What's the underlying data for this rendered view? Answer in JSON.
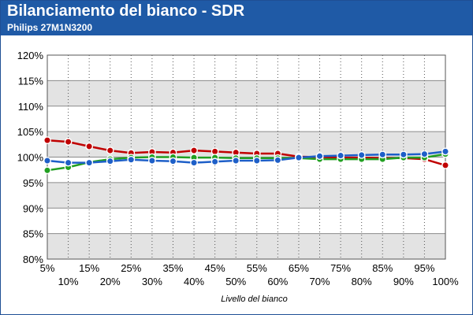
{
  "header": {
    "title": "Bilanciamento del bianco - SDR",
    "subtitle": "Philips 27M1N3200"
  },
  "chart_data": {
    "type": "line",
    "title": "Bilanciamento del bianco - SDR",
    "subtitle": "Philips 27M1N3200",
    "xlabel": "Livello del bianco",
    "ylabel": "",
    "categories": [
      "5%",
      "10%",
      "15%",
      "20%",
      "25%",
      "30%",
      "35%",
      "40%",
      "45%",
      "50%",
      "55%",
      "60%",
      "65%",
      "70%",
      "75%",
      "80%",
      "85%",
      "90%",
      "95%",
      "100%"
    ],
    "yticks": [
      "80%",
      "85%",
      "90%",
      "95%",
      "100%",
      "105%",
      "110%",
      "115%",
      "120%"
    ],
    "ylim": [
      80,
      120
    ],
    "grid": true,
    "legend": "none",
    "series": [
      {
        "color": "#c00000",
        "values": [
          103.3,
          103.0,
          102.1,
          101.3,
          100.8,
          101.0,
          100.9,
          101.3,
          101.1,
          100.9,
          100.7,
          100.7,
          100.1,
          100.0,
          99.9,
          99.9,
          99.8,
          99.8,
          99.6,
          98.4
        ]
      },
      {
        "color": "#22a022",
        "values": [
          97.4,
          98.0,
          99.0,
          99.6,
          99.9,
          100.0,
          100.0,
          99.9,
          99.9,
          99.8,
          99.8,
          99.8,
          99.8,
          99.6,
          99.6,
          99.6,
          99.6,
          99.9,
          99.9,
          100.6
        ]
      },
      {
        "color": "#1e5fc8",
        "values": [
          99.3,
          98.9,
          98.9,
          99.2,
          99.5,
          99.3,
          99.2,
          98.9,
          99.1,
          99.3,
          99.3,
          99.4,
          99.9,
          100.2,
          100.3,
          100.4,
          100.5,
          100.5,
          100.6,
          101.1
        ]
      }
    ]
  }
}
